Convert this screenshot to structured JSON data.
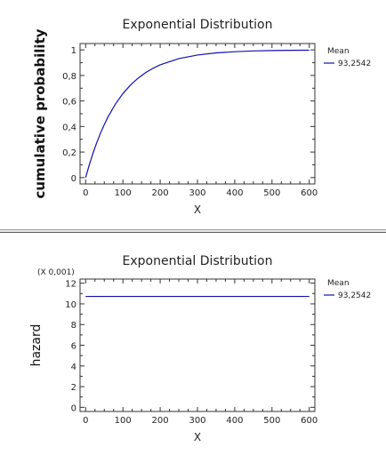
{
  "chart_data": [
    {
      "type": "line",
      "title": "Exponential Distribution",
      "xlabel": "X",
      "ylabel": "cumulative probability",
      "multiplier_label": "",
      "xlim": [
        -15,
        615
      ],
      "ylim": [
        -0.05,
        1.05
      ],
      "xticks": [
        0,
        100,
        200,
        300,
        400,
        500,
        600
      ],
      "yticks": [
        0,
        0.2,
        0.4,
        0.6,
        0.8,
        1
      ],
      "ytick_labels": [
        "0",
        "0,2",
        "0,4",
        "0,6",
        "0,8",
        "1"
      ],
      "legend": {
        "title": "Mean",
        "entries": [
          "93,2542"
        ],
        "placement": "right"
      },
      "series": [
        {
          "name": "93,2542",
          "color": "#1010b0",
          "x": [
            0,
            10,
            20,
            30,
            40,
            50,
            60,
            80,
            100,
            120,
            140,
            160,
            180,
            200,
            250,
            300,
            350,
            400,
            450,
            500,
            550,
            600
          ],
          "y": [
            0,
            0.102,
            0.193,
            0.275,
            0.349,
            0.415,
            0.475,
            0.576,
            0.658,
            0.724,
            0.777,
            0.82,
            0.855,
            0.883,
            0.932,
            0.96,
            0.977,
            0.986,
            0.992,
            0.995,
            0.997,
            0.998
          ]
        }
      ]
    },
    {
      "type": "line",
      "title": "Exponential Distribution",
      "xlabel": "X",
      "ylabel": "hazard",
      "multiplier_label": "(X 0,001)",
      "xlim": [
        -15,
        615
      ],
      "ylim": [
        -0.4,
        12.4
      ],
      "xticks": [
        0,
        100,
        200,
        300,
        400,
        500,
        600
      ],
      "yticks": [
        0,
        2,
        4,
        6,
        8,
        10,
        12
      ],
      "ytick_labels": [
        "0",
        "2",
        "4",
        "6",
        "8",
        "10",
        "12"
      ],
      "legend": {
        "title": "Mean",
        "entries": [
          "93,2542"
        ],
        "placement": "right"
      },
      "series": [
        {
          "name": "93,2542",
          "color": "#1010b0",
          "x": [
            0,
            600
          ],
          "y": [
            10.72,
            10.72
          ]
        }
      ]
    }
  ]
}
